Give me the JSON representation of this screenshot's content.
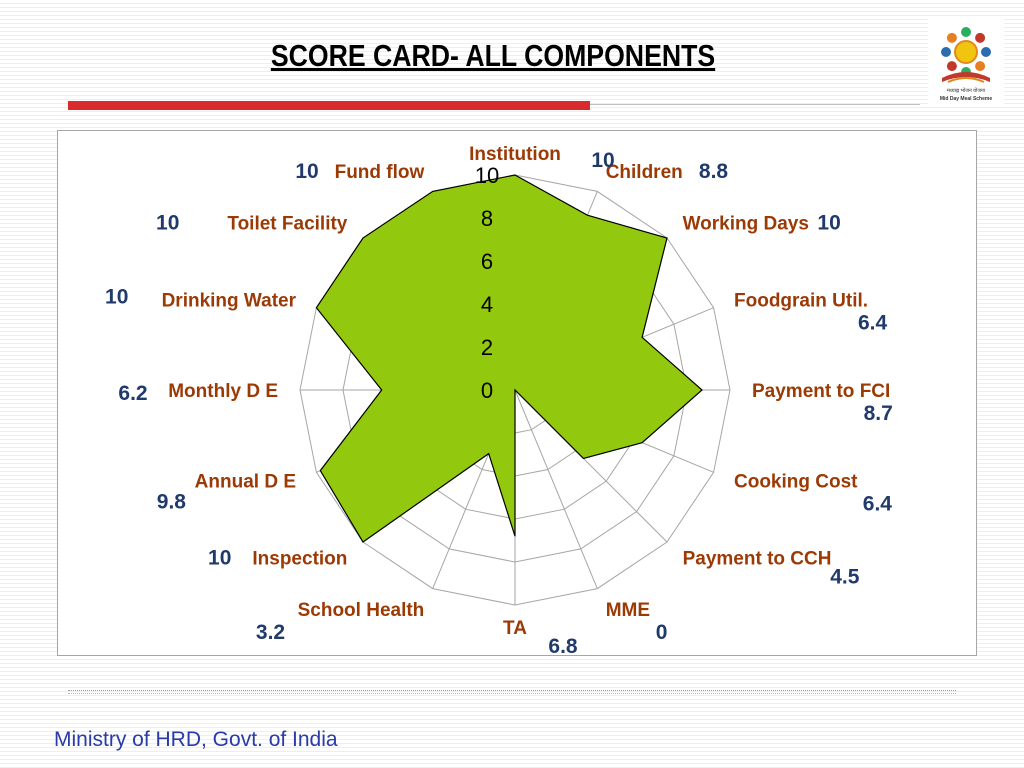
{
  "slide": {
    "title": "SCORE CARD- ALL COMPONENTS",
    "footer": "Ministry of HRD, Govt. of India",
    "logo_caption_1": "मध्याह्न भोजन योजना",
    "logo_caption_2": "Mid Day Meal Scheme"
  },
  "colors": {
    "fill": "#92c90f",
    "category_label": "#9c3a06",
    "value_label": "#1f3a6b",
    "accent_red": "#d92b2b",
    "footer_text": "#2a3aa8"
  },
  "chart_data": {
    "type": "radar",
    "title": "",
    "categories": [
      "Institution",
      "Children",
      "Working Days",
      "Foodgrain Util.",
      "Payment to FCI",
      "Cooking Cost",
      "Payment to CCH",
      "MME",
      "TA",
      "School Health",
      "Inspection",
      "Annual D E",
      "Monthly D E",
      "Drinking Water",
      "Toilet Facility",
      "Fund flow"
    ],
    "values": [
      10,
      8.8,
      10,
      6.4,
      8.7,
      6.4,
      4.5,
      0,
      6.8,
      3.2,
      10,
      9.8,
      6.2,
      10,
      10,
      10
    ],
    "value_labels": [
      "10",
      "8.8",
      "10",
      "6.4",
      "8.7",
      "6.4",
      "4.5",
      "0",
      "6.8",
      "3.2",
      "10",
      "9.8",
      "6.2",
      "10",
      "10",
      "10"
    ],
    "radial_ticks": [
      "0",
      "2",
      "4",
      "6",
      "8",
      "10"
    ],
    "rlim": [
      0,
      10
    ],
    "grid": true,
    "legend": "none"
  }
}
